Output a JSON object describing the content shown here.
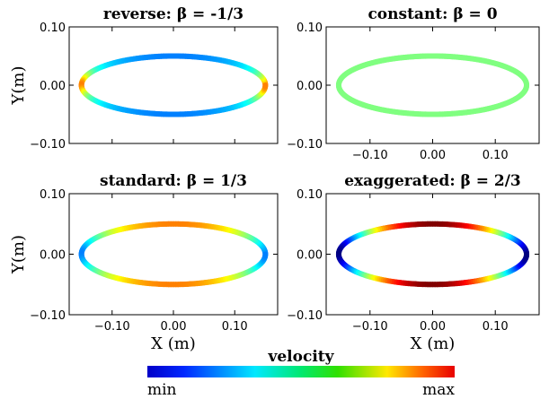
{
  "chart_data": [
    {
      "type": "line",
      "title": "reverse: β = -1/3",
      "ylabel": "Y(m)",
      "xlabel": "",
      "xlim": [
        -0.17,
        0.17
      ],
      "ylim": [
        -0.1,
        0.1
      ],
      "xticks": [
        "-0.10",
        "0.00",
        "0.10"
      ],
      "yticks": [
        "0.10",
        "0.00",
        "-0.10"
      ],
      "show_xticks": false,
      "series": [
        {
          "ellipse_semi_axes": [
            0.15,
            0.05
          ],
          "beta": -0.3333,
          "color_by": "velocity"
        }
      ]
    },
    {
      "type": "line",
      "title": "constant: β = 0",
      "ylabel": "",
      "xlabel": "",
      "xlim": [
        -0.17,
        0.17
      ],
      "ylim": [
        -0.1,
        0.1
      ],
      "xticks": [
        "-0.10",
        "0.00",
        "0.10"
      ],
      "yticks": [
        "0.10",
        "0.00",
        "-0.10"
      ],
      "show_xticks": true,
      "series": [
        {
          "ellipse_semi_axes": [
            0.15,
            0.05
          ],
          "beta": 0,
          "color_by": "velocity"
        }
      ]
    },
    {
      "type": "line",
      "title": "standard: β = 1/3",
      "ylabel": "Y(m)",
      "xlabel": "X (m)",
      "xlim": [
        -0.17,
        0.17
      ],
      "ylim": [
        -0.1,
        0.1
      ],
      "xticks": [
        "-0.10",
        "0.00",
        "0.10"
      ],
      "yticks": [
        "0.10",
        "0.00",
        "-0.10"
      ],
      "show_xticks": true,
      "series": [
        {
          "ellipse_semi_axes": [
            0.15,
            0.05
          ],
          "beta": 0.3333,
          "color_by": "velocity"
        }
      ]
    },
    {
      "type": "line",
      "title": "exaggerated: β = 2/3",
      "ylabel": "",
      "xlabel": "X (m)",
      "xlim": [
        -0.17,
        0.17
      ],
      "ylim": [
        -0.1,
        0.1
      ],
      "xticks": [
        "-0.10",
        "0.00",
        "0.10"
      ],
      "yticks": [
        "0.10",
        "0.00",
        "-0.10"
      ],
      "show_xticks": true,
      "series": [
        {
          "ellipse_semi_axes": [
            0.15,
            0.05
          ],
          "beta": 0.6667,
          "color_by": "velocity"
        }
      ]
    }
  ],
  "colorbar": {
    "title": "velocity",
    "min_label": "min",
    "max_label": "max",
    "colormap": "jet"
  }
}
